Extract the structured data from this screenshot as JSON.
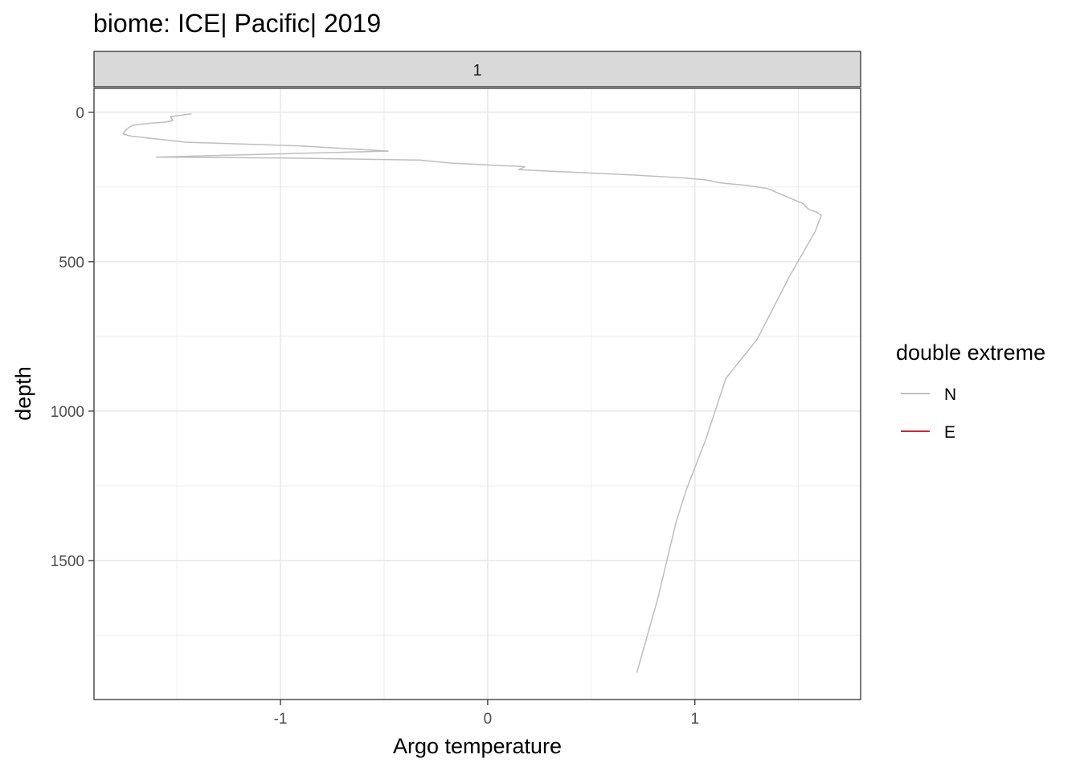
{
  "chart_data": {
    "type": "line",
    "title": "biome: ICE| Pacific| 2019",
    "facet_label": "1",
    "xlabel": "Argo temperature",
    "ylabel": "depth",
    "xlim": [
      -1.9,
      1.8
    ],
    "ylim": [
      -80,
      1965
    ],
    "y_reversed": true,
    "x_ticks": [
      -1,
      0,
      1
    ],
    "x_tick_labels": [
      "-1",
      "0",
      "1"
    ],
    "y_ticks": [
      0,
      500,
      1000,
      1500
    ],
    "y_tick_labels": [
      "0",
      "500",
      "1000",
      "1500"
    ],
    "grid": true,
    "legend": {
      "title": "double extreme",
      "position": "right",
      "entries": [
        {
          "label": "N",
          "color": "#bebebe"
        },
        {
          "label": "E",
          "color": "#ff0000"
        }
      ]
    },
    "series": [
      {
        "name": "N",
        "color": "#bebebe",
        "points": [
          [
            -1.43,
            5
          ],
          [
            -1.53,
            15
          ],
          [
            -1.52,
            28
          ],
          [
            -1.56,
            33
          ],
          [
            -1.63,
            37
          ],
          [
            -1.71,
            43
          ],
          [
            -1.73,
            50
          ],
          [
            -1.75,
            62
          ],
          [
            -1.76,
            73
          ],
          [
            -1.72,
            80
          ],
          [
            -1.46,
            100
          ],
          [
            -0.9,
            113
          ],
          [
            -0.48,
            130
          ],
          [
            -1.6,
            150
          ],
          [
            -0.98,
            153
          ],
          [
            -0.33,
            160
          ],
          [
            -0.18,
            170
          ],
          [
            0.05,
            178
          ],
          [
            0.18,
            182
          ],
          [
            0.15,
            192
          ],
          [
            0.3,
            197
          ],
          [
            0.7,
            210
          ],
          [
            0.95,
            220
          ],
          [
            1.05,
            226
          ],
          [
            1.12,
            236
          ],
          [
            1.25,
            245
          ],
          [
            1.35,
            255
          ],
          [
            1.4,
            270
          ],
          [
            1.52,
            305
          ],
          [
            1.55,
            325
          ],
          [
            1.59,
            335
          ],
          [
            1.61,
            345
          ],
          [
            1.58,
            400
          ],
          [
            1.46,
            545
          ],
          [
            1.3,
            760
          ],
          [
            1.15,
            890
          ],
          [
            1.05,
            1100
          ],
          [
            0.96,
            1260
          ],
          [
            0.91,
            1370
          ],
          [
            0.82,
            1630
          ],
          [
            0.72,
            1875
          ]
        ]
      }
    ]
  }
}
